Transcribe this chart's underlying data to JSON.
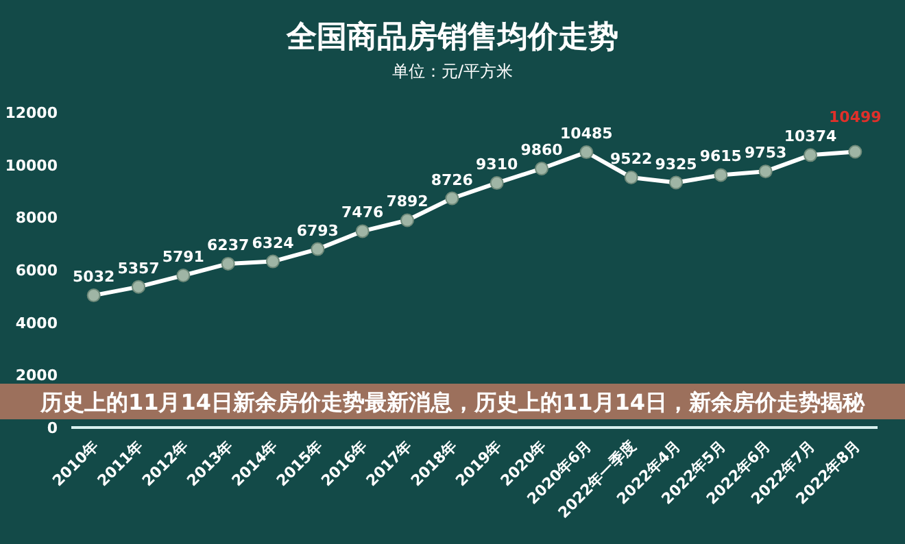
{
  "chart_data": {
    "type": "line",
    "title": "全国商品房销售均价走势",
    "subtitle": "单位：元/平方米",
    "categories": [
      "2010年",
      "2011年",
      "2012年",
      "2013年",
      "2014年",
      "2015年",
      "2016年",
      "2017年",
      "2018年",
      "2019年",
      "2020年",
      "2020年6月",
      "2022年一季度",
      "2022年4月",
      "2022年5月",
      "2022年6月",
      "2022年7月",
      "2022年8月"
    ],
    "series": [
      {
        "color": "#ffffff",
        "values": [
          5032,
          5357,
          5791,
          6237,
          6324,
          6793,
          7476,
          7892,
          8726,
          9310,
          9860,
          10485,
          9522,
          9325,
          9615,
          9753,
          10374,
          10499
        ]
      }
    ],
    "ylim": [
      0,
      12000
    ],
    "yticks": [
      0,
      2000,
      4000,
      6000,
      8000,
      10000,
      12000
    ],
    "data_labels": true,
    "marker": "circle",
    "grid": false,
    "annotations": [
      "历史上的11月14日新余房价走势最新消息，历史上的11月14日，新余房价走势揭秘"
    ]
  }
}
